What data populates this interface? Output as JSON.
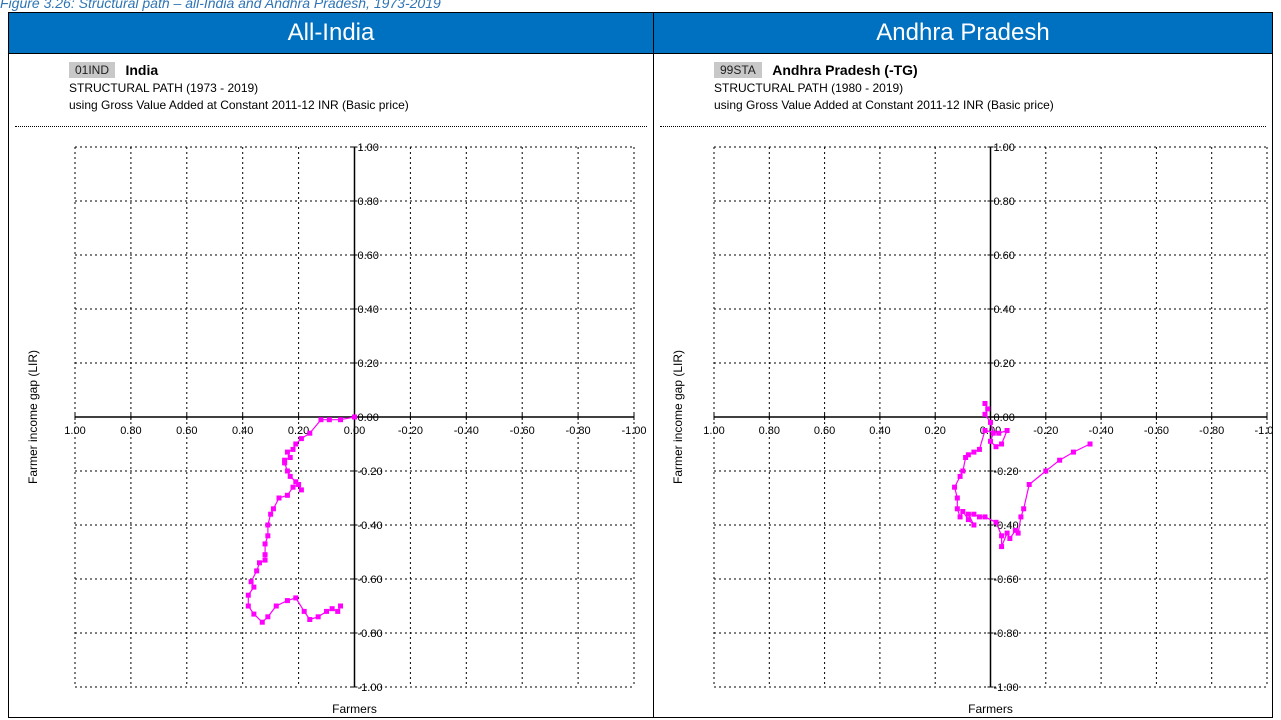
{
  "caption": "Figure 3.26: Structural path – all-India and Andhra Pradesh, 1973-2019",
  "panels": [
    {
      "header": "All-India",
      "code": "01IND",
      "region": "India",
      "line1": "STRUCTURAL PATH (1973 - 2019)",
      "line2": "using Gross Value Added at Constant 2011-12 INR (Basic price)"
    },
    {
      "header": "Andhra Pradesh",
      "code": "99STA",
      "region": "Andhra Pradesh (-TG)",
      "line1": "STRUCTURAL PATH (1980 - 2019)",
      "line2": "using Gross Value Added at Constant 2011-12 INR (Basic price)"
    }
  ],
  "chart_data": [
    {
      "type": "line",
      "xlabel": "Farmers",
      "ylabel": "Farmer income gap (LIR)",
      "xlim": [
        1.0,
        -1.0
      ],
      "ylim": [
        -1.0,
        1.0
      ],
      "x_ticks": [
        "1.00",
        "0.80",
        "0.60",
        "0.40",
        "0.20",
        "0.00",
        "-0.20",
        "-0.40",
        "-0.60",
        "-0.80",
        "-1.00"
      ],
      "y_ticks": [
        "1.00",
        "0.80",
        "0.60",
        "0.40",
        "0.20",
        "0.00",
        "-0.20",
        "-0.40",
        "-0.60",
        "-0.80",
        "-1.00"
      ],
      "grid": true,
      "series_color": "#ff00ff",
      "points": [
        [
          0.0,
          0.0
        ],
        [
          0.05,
          -0.01
        ],
        [
          0.09,
          -0.01
        ],
        [
          0.12,
          -0.01
        ],
        [
          0.16,
          -0.06
        ],
        [
          0.19,
          -0.08
        ],
        [
          0.21,
          -0.1
        ],
        [
          0.22,
          -0.12
        ],
        [
          0.24,
          -0.13
        ],
        [
          0.23,
          -0.15
        ],
        [
          0.25,
          -0.16
        ],
        [
          0.25,
          -0.17
        ],
        [
          0.24,
          -0.2
        ],
        [
          0.23,
          -0.22
        ],
        [
          0.21,
          -0.24
        ],
        [
          0.19,
          -0.27
        ],
        [
          0.2,
          -0.25
        ],
        [
          0.22,
          -0.26
        ],
        [
          0.24,
          -0.29
        ],
        [
          0.27,
          -0.3
        ],
        [
          0.29,
          -0.34
        ],
        [
          0.3,
          -0.36
        ],
        [
          0.31,
          -0.4
        ],
        [
          0.31,
          -0.44
        ],
        [
          0.32,
          -0.47
        ],
        [
          0.32,
          -0.51
        ],
        [
          0.32,
          -0.53
        ],
        [
          0.34,
          -0.54
        ],
        [
          0.35,
          -0.57
        ],
        [
          0.37,
          -0.61
        ],
        [
          0.36,
          -0.63
        ],
        [
          0.38,
          -0.66
        ],
        [
          0.38,
          -0.7
        ],
        [
          0.36,
          -0.73
        ],
        [
          0.33,
          -0.76
        ],
        [
          0.31,
          -0.74
        ],
        [
          0.28,
          -0.7
        ],
        [
          0.24,
          -0.68
        ],
        [
          0.21,
          -0.67
        ],
        [
          0.18,
          -0.72
        ],
        [
          0.16,
          -0.75
        ],
        [
          0.13,
          -0.74
        ],
        [
          0.1,
          -0.72
        ],
        [
          0.08,
          -0.71
        ],
        [
          0.06,
          -0.72
        ],
        [
          0.05,
          -0.7
        ]
      ]
    },
    {
      "type": "line",
      "xlabel": "Farmers",
      "ylabel": "Farmer income gap (LIR)",
      "xlim": [
        1.0,
        -1.0
      ],
      "ylim": [
        -1.0,
        1.0
      ],
      "x_ticks": [
        "1.00",
        "0.80",
        "0.60",
        "0.40",
        "0.20",
        "0.00",
        "-0.20",
        "-0.40",
        "-0.60",
        "-0.80",
        "-1.00"
      ],
      "y_ticks": [
        "1.00",
        "0.80",
        "0.60",
        "0.40",
        "0.20",
        "0.00",
        "-0.20",
        "-0.40",
        "-0.60",
        "-0.80",
        "-1.00"
      ],
      "grid": true,
      "series_color": "#ff00ff",
      "points": [
        [
          0.02,
          0.05
        ],
        [
          0.01,
          0.03
        ],
        [
          0.02,
          0.01
        ],
        [
          0.0,
          -0.02
        ],
        [
          -0.01,
          -0.06
        ],
        [
          0.0,
          -0.09
        ],
        [
          -0.02,
          -0.11
        ],
        [
          -0.04,
          -0.1
        ],
        [
          -0.06,
          -0.05
        ],
        [
          -0.03,
          -0.06
        ],
        [
          0.02,
          -0.05
        ],
        [
          0.04,
          -0.12
        ],
        [
          0.06,
          -0.13
        ],
        [
          0.08,
          -0.14
        ],
        [
          0.09,
          -0.15
        ],
        [
          0.1,
          -0.2
        ],
        [
          0.11,
          -0.22
        ],
        [
          0.13,
          -0.26
        ],
        [
          0.12,
          -0.3
        ],
        [
          0.12,
          -0.34
        ],
        [
          0.11,
          -0.37
        ],
        [
          0.1,
          -0.35
        ],
        [
          0.08,
          -0.38
        ],
        [
          0.06,
          -0.4
        ],
        [
          0.08,
          -0.36
        ],
        [
          0.06,
          -0.36
        ],
        [
          0.04,
          -0.37
        ],
        [
          0.02,
          -0.37
        ],
        [
          -0.02,
          -0.39
        ],
        [
          -0.04,
          -0.44
        ],
        [
          -0.04,
          -0.48
        ],
        [
          -0.06,
          -0.43
        ],
        [
          -0.07,
          -0.45
        ],
        [
          -0.09,
          -0.42
        ],
        [
          -0.1,
          -0.43
        ],
        [
          -0.11,
          -0.37
        ],
        [
          -0.12,
          -0.34
        ],
        [
          -0.14,
          -0.25
        ],
        [
          -0.2,
          -0.2
        ],
        [
          -0.25,
          -0.16
        ],
        [
          -0.3,
          -0.13
        ],
        [
          -0.36,
          -0.1
        ]
      ]
    }
  ]
}
